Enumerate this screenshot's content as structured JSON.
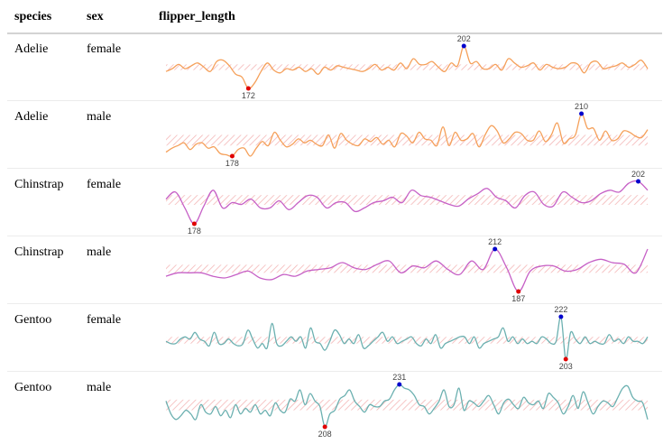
{
  "table": {
    "columns": [
      "species",
      "sex",
      "flipper_length"
    ]
  },
  "chart_data": {
    "type": "table",
    "column": "flipper_length",
    "band_color": "#f4b6b6",
    "min_marker_color": "#e00000",
    "max_marker_color": "#0000cc",
    "rows": [
      {
        "species": "Adelie",
        "sex": "female",
        "color": "#f5a05a",
        "min": 172,
        "max": 202,
        "values": [
          184,
          186,
          189,
          186,
          188,
          190,
          187,
          184,
          191,
          192,
          188,
          182,
          180,
          172,
          176,
          184,
          190,
          185,
          183,
          186,
          185,
          187,
          184,
          186,
          182,
          187,
          185,
          188,
          187,
          186,
          185,
          184,
          186,
          189,
          185,
          187,
          185,
          190,
          186,
          193,
          189,
          189,
          191,
          187,
          184,
          190,
          188,
          202,
          190,
          191,
          186,
          186,
          189,
          185,
          193,
          190,
          187,
          188,
          190,
          185,
          189,
          187,
          186,
          187,
          190,
          189,
          183,
          190,
          191,
          186,
          187,
          188,
          190,
          187,
          189,
          192,
          186
        ]
      },
      {
        "species": "Adelie",
        "sex": "male",
        "color": "#f5a05a",
        "min": 178,
        "max": 210,
        "values": [
          181,
          184,
          186,
          188,
          183,
          187,
          188,
          184,
          185,
          180,
          179,
          178,
          183,
          184,
          178,
          184,
          189,
          186,
          196,
          190,
          185,
          187,
          191,
          188,
          190,
          187,
          186,
          194,
          184,
          195,
          190,
          187,
          186,
          191,
          189,
          192,
          187,
          190,
          185,
          195,
          193,
          188,
          196,
          191,
          190,
          186,
          200,
          186,
          196,
          190,
          191,
          195,
          185,
          194,
          201,
          197,
          188,
          191,
          196,
          195,
          190,
          190,
          197,
          189,
          194,
          203,
          188,
          191,
          194,
          210,
          199,
          199,
          190,
          197,
          190,
          191,
          197,
          196,
          193,
          192,
          198
        ]
      },
      {
        "species": "Chinstrap",
        "sex": "female",
        "color": "#c660c6",
        "min": 178,
        "max": 202,
        "values": [
          192,
          196,
          187,
          178,
          188,
          197,
          187,
          190,
          189,
          192,
          187,
          187,
          191,
          186,
          190,
          194,
          193,
          187,
          190,
          190,
          185,
          187,
          190,
          191,
          193,
          190,
          197,
          194,
          193,
          191,
          189,
          188,
          192,
          195,
          198,
          193,
          191,
          187,
          194,
          196,
          189,
          188,
          196,
          193,
          190,
          191,
          195,
          197,
          196,
          201,
          202,
          197
        ]
      },
      {
        "species": "Chinstrap",
        "sex": "male",
        "color": "#c660c6",
        "min": 187,
        "max": 212,
        "values": [
          196,
          198,
          198,
          198,
          196,
          195,
          197,
          199,
          195,
          194,
          197,
          196,
          199,
          200,
          201,
          204,
          201,
          200,
          203,
          205,
          198,
          202,
          201,
          205,
          200,
          197,
          205,
          200,
          212,
          201,
          187,
          199,
          202,
          202,
          199,
          200,
          204,
          206,
          204,
          203,
          198,
          212
        ]
      },
      {
        "species": "Gentoo",
        "sex": "female",
        "color": "#6bb0b0",
        "min": 203,
        "max": 222,
        "values": [
          211,
          210,
          210,
          212,
          213,
          212,
          215,
          212,
          211,
          209,
          215,
          210,
          210,
          212,
          210,
          209,
          210,
          216,
          212,
          208,
          210,
          208,
          219,
          210,
          209,
          211,
          213,
          211,
          213,
          208,
          217,
          211,
          210,
          207,
          211,
          216,
          214,
          210,
          212,
          210,
          214,
          208,
          209,
          211,
          213,
          215,
          211,
          213,
          210,
          211,
          212,
          213,
          210,
          209,
          212,
          210,
          214,
          208,
          210,
          211,
          212,
          213,
          213,
          210,
          213,
          208,
          210,
          211,
          212,
          213,
          217,
          211,
          213,
          210,
          212,
          210,
          211,
          210,
          213,
          212,
          210,
          211,
          222,
          203,
          215,
          212,
          210,
          213,
          210,
          211,
          210,
          210,
          214,
          211,
          212,
          210,
          213,
          211,
          211,
          210,
          213
        ]
      },
      {
        "species": "Gentoo",
        "sex": "male",
        "color": "#6bb0b0",
        "min": 208,
        "max": 231,
        "values": [
          222,
          215,
          212,
          214,
          217,
          215,
          212,
          220,
          216,
          215,
          219,
          214,
          217,
          213,
          220,
          215,
          218,
          216,
          220,
          215,
          217,
          214,
          221,
          217,
          216,
          223,
          222,
          228,
          220,
          226,
          222,
          219,
          208,
          215,
          217,
          223,
          225,
          228,
          222,
          219,
          216,
          220,
          219,
          219,
          222,
          223,
          228,
          231,
          229,
          228,
          225,
          220,
          219,
          215,
          218,
          222,
          228,
          219,
          220,
          229,
          217,
          222,
          221,
          219,
          222,
          225,
          220,
          215,
          221,
          223,
          220,
          218,
          224,
          221,
          220,
          222,
          218,
          226,
          224,
          221,
          215,
          219,
          225,
          218,
          227,
          221,
          215,
          219,
          222,
          221,
          219,
          224,
          229,
          230,
          224,
          222,
          221,
          212
        ]
      }
    ]
  }
}
